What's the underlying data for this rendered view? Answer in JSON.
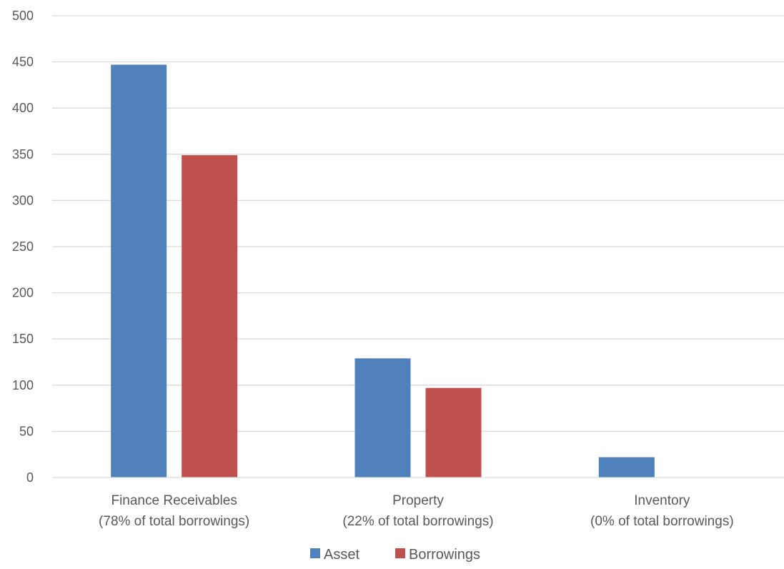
{
  "chart_data": {
    "type": "bar",
    "title": "",
    "xlabel": "",
    "ylabel": "",
    "categories": [
      [
        "Finance Receivables",
        "(78% of total borrowings)"
      ],
      [
        "Property",
        "(22% of total borrowings)"
      ],
      [
        "Inventory",
        "(0% of total borrowings)"
      ]
    ],
    "series": [
      {
        "name": "Asset",
        "color": "#4f81bd",
        "values": [
          447,
          129,
          22
        ]
      },
      {
        "name": "Borrowings",
        "color": "#c0504d",
        "values": [
          349,
          97,
          0
        ]
      }
    ],
    "ylim": [
      0,
      500
    ],
    "yticks": [
      0,
      50,
      100,
      150,
      200,
      250,
      300,
      350,
      400,
      450,
      500
    ],
    "grid": true,
    "gridline_color": "#d9d9d9",
    "legend_position": "bottom-center"
  }
}
